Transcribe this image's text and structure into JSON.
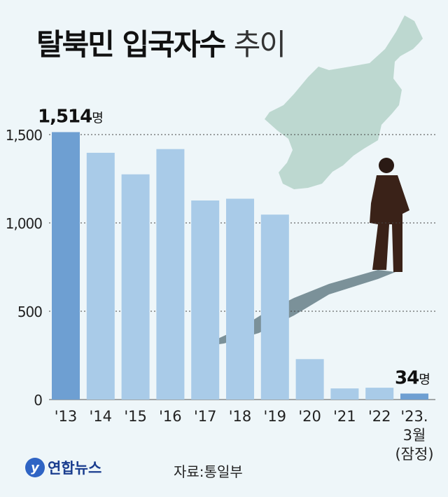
{
  "title": {
    "bold": "탈북민 입국자수",
    "light": "추이"
  },
  "source": "자료:통일부",
  "logo_text": "연합뉴스",
  "chart_data": {
    "type": "bar",
    "title": "탈북민 입국자수 추이",
    "categories": [
      "'13",
      "'14",
      "'15",
      "'16",
      "'17",
      "'18",
      "'19",
      "'20",
      "'21",
      "'22",
      "'23.\n3월\n(잠정)"
    ],
    "values": [
      1514,
      1397,
      1275,
      1418,
      1127,
      1137,
      1047,
      229,
      63,
      67,
      34
    ],
    "highlighted": [
      0,
      10
    ],
    "data_labels": [
      {
        "index": 0,
        "value": "1,514",
        "unit": "명"
      },
      {
        "index": 10,
        "value": "34",
        "unit": "명"
      }
    ],
    "yticks": [
      0,
      500,
      1000,
      1500
    ],
    "ytick_labels": [
      "0",
      "500",
      "1,000",
      "1,500"
    ],
    "ylim": [
      0,
      1500
    ],
    "grid": true,
    "colors": {
      "bar": "#a9cbe8",
      "highlight": "#6e9fd2",
      "background": "#eef6f9",
      "map": "#bdd8d0"
    }
  }
}
